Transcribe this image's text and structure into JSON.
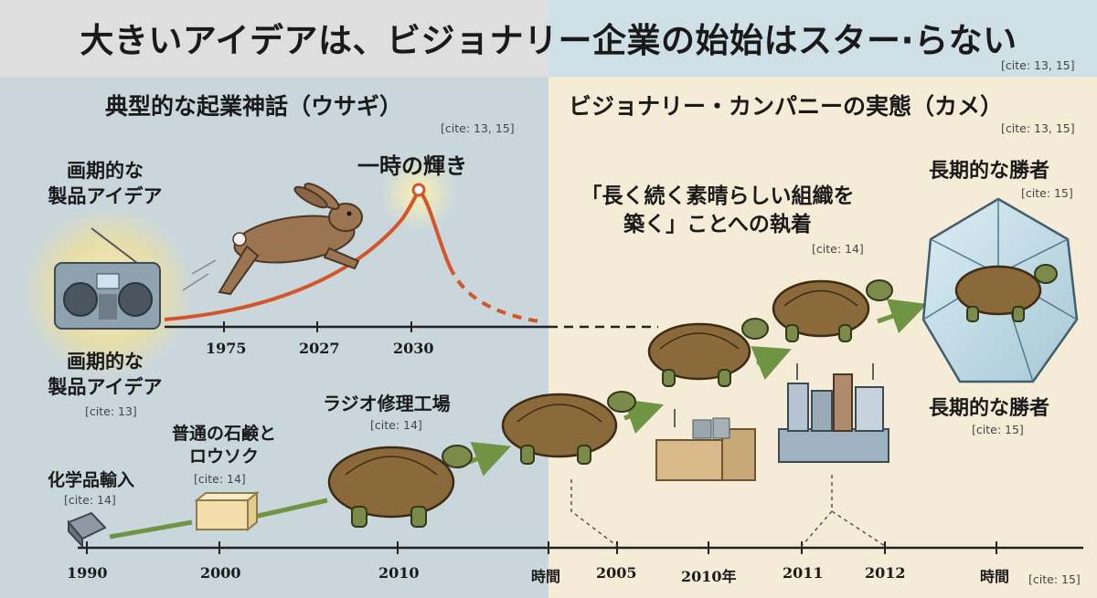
{
  "title": "大きいアイデアは、ビジョナリー企業の始始はスター·らない",
  "title_cite": "[cite: 13, 15]",
  "left": {
    "heading": "典型的な起業神話（ウサギ）",
    "heading_cite": "[cite: 13, 15]",
    "product_idea_top": [
      "画期的な",
      "製品アイデア"
    ],
    "product_idea_bottom": [
      "画期的な",
      "製品アイデア"
    ],
    "product_idea_cite": "[cite: 13]",
    "peak_label": "一時の輝き",
    "upper_years": [
      "1975",
      "2027",
      "2030"
    ],
    "steps": [
      {
        "label": [
          "化学品輸入"
        ],
        "cite": "[cite: 14]"
      },
      {
        "label": [
          "普通の石鹸と",
          "ロウソク"
        ],
        "cite": "[cite: 14]"
      },
      {
        "label": [
          "ラジオ修理工場"
        ],
        "cite": "[cite: 14]"
      }
    ]
  },
  "right": {
    "heading": "ビジョナリー・カンパニーの実態（カメ）",
    "heading_cite": "[cite: 13, 15]",
    "commitment": [
      "「長く続く素晴らしい組織を",
      "築く」ことへの執着"
    ],
    "commitment_cite": "[cite: 14]",
    "winner_top": "長期的な勝者",
    "winner_top_cite": "[cite: 15]",
    "winner_bottom": "長期的な勝者",
    "winner_bottom_cite": "[cite: 15]"
  },
  "axis": {
    "labels": [
      "1990",
      "2000",
      "2010",
      "時間",
      "2005",
      "2010年",
      "2011",
      "2012",
      "時間"
    ],
    "cite": "[cite: 15]"
  },
  "colors": {
    "left_bg": "#c9d6dc",
    "right_bg": "#f4ecd6",
    "curve": "#d4552a",
    "path_green": "#6f9443",
    "shell": "#8a6a3a",
    "skin": "#7c8b4a"
  },
  "icons": [
    "radio-icon",
    "rabbit-icon",
    "tortoise-icon",
    "soap-icon",
    "package-icon",
    "factory-icon",
    "crystal-icon"
  ]
}
